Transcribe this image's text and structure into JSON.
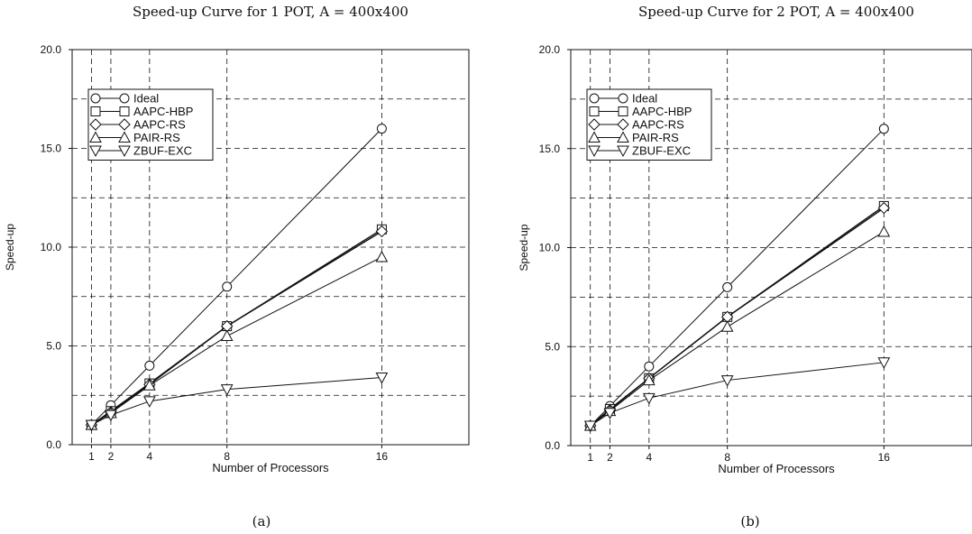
{
  "chart_data": [
    {
      "type": "line",
      "title": "Speed-up Curve for 1 POT, A = 400x400",
      "xlabel": "Number of Processors",
      "ylabel": "Speed-up",
      "caption": "(a)",
      "x": [
        1,
        2,
        4,
        8,
        16
      ],
      "xlim": [
        0,
        20.5
      ],
      "ylim": [
        0,
        20
      ],
      "yticks": [
        "0.0",
        "5.0",
        "10.0",
        "15.0",
        "20.0"
      ],
      "xticks": [
        "1",
        "2",
        "4",
        "8",
        "16"
      ],
      "grid": true,
      "legend_position": "top-left",
      "series": [
        {
          "name": "Ideal",
          "marker": "circle",
          "values": [
            1,
            2,
            4,
            8,
            16
          ]
        },
        {
          "name": "AAPC-HBP",
          "marker": "square",
          "values": [
            1,
            1.7,
            3.1,
            6.0,
            10.9
          ]
        },
        {
          "name": "AAPC-RS",
          "marker": "diamond",
          "values": [
            1,
            1.65,
            3.05,
            6.0,
            10.8
          ]
        },
        {
          "name": "PAIR-RS",
          "marker": "triangle-up",
          "values": [
            1,
            1.6,
            3.0,
            5.5,
            9.5
          ]
        },
        {
          "name": "ZBUF-EXC",
          "marker": "triangle-down",
          "values": [
            1,
            1.5,
            2.2,
            2.8,
            3.4
          ]
        }
      ]
    },
    {
      "type": "line",
      "title": "Speed-up Curve for 2 POT, A = 400x400",
      "xlabel": "Number of Processors",
      "ylabel": "Speed-up",
      "caption": "(b)",
      "x": [
        1,
        2,
        4,
        8,
        16
      ],
      "xlim": [
        0,
        20.5
      ],
      "ylim": [
        0,
        20
      ],
      "yticks": [
        "0.0",
        "5.0",
        "10.0",
        "15.0",
        "20.0"
      ],
      "xticks": [
        "1",
        "2",
        "4",
        "8",
        "16"
      ],
      "grid": true,
      "legend_position": "top-left",
      "series": [
        {
          "name": "Ideal",
          "marker": "circle",
          "values": [
            1,
            2,
            4,
            8,
            16
          ]
        },
        {
          "name": "AAPC-HBP",
          "marker": "square",
          "values": [
            1,
            1.85,
            3.4,
            6.5,
            12.1
          ]
        },
        {
          "name": "AAPC-RS",
          "marker": "diamond",
          "values": [
            1,
            1.8,
            3.4,
            6.5,
            12.0
          ]
        },
        {
          "name": "PAIR-RS",
          "marker": "triangle-up",
          "values": [
            1,
            1.75,
            3.3,
            6.0,
            10.8
          ]
        },
        {
          "name": "ZBUF-EXC",
          "marker": "triangle-down",
          "values": [
            1,
            1.65,
            2.4,
            3.3,
            4.2
          ]
        }
      ]
    }
  ]
}
